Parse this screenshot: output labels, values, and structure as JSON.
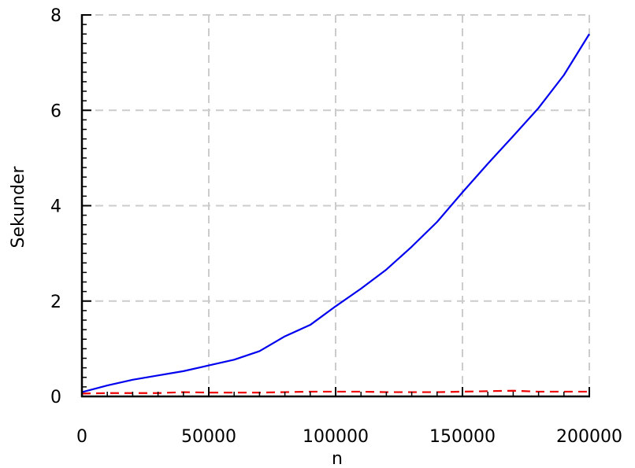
{
  "chart_data": {
    "type": "line",
    "title": "",
    "xlabel": "n",
    "ylabel": "Sekunder",
    "xlim": [
      0,
      200000
    ],
    "ylim": [
      0,
      8
    ],
    "xticks": [
      0,
      50000,
      100000,
      150000,
      200000
    ],
    "xtick_labels": [
      "0",
      "50000",
      "100000",
      "150000",
      "200000"
    ],
    "yticks": [
      0,
      2,
      4,
      6,
      8
    ],
    "ytick_labels": [
      "0",
      "2",
      "4",
      "6",
      "8"
    ],
    "grid": true,
    "series": [
      {
        "color": "#0000ee",
        "line_style": "solid",
        "x": [
          0,
          10000,
          20000,
          30000,
          40000,
          50000,
          60000,
          70000,
          80000,
          90000,
          100000,
          110000,
          120000,
          130000,
          140000,
          150000,
          160000,
          170000,
          180000,
          190000,
          200000
        ],
        "y": [
          0.09,
          0.23,
          0.35,
          0.44,
          0.53,
          0.65,
          0.77,
          0.95,
          1.26,
          1.5,
          1.89,
          2.26,
          2.66,
          3.14,
          3.66,
          4.28,
          4.88,
          5.46,
          6.05,
          6.74,
          7.6
        ]
      },
      {
        "color": "#ee0000",
        "line_style": "dashed",
        "x": [
          0,
          10000,
          20000,
          30000,
          40000,
          50000,
          60000,
          70000,
          80000,
          90000,
          100000,
          110000,
          120000,
          130000,
          140000,
          150000,
          160000,
          170000,
          180000,
          190000,
          200000
        ],
        "y": [
          0.06,
          0.07,
          0.07,
          0.07,
          0.09,
          0.08,
          0.08,
          0.08,
          0.09,
          0.1,
          0.1,
          0.1,
          0.09,
          0.09,
          0.09,
          0.1,
          0.11,
          0.12,
          0.1,
          0.1,
          0.1
        ]
      }
    ]
  }
}
